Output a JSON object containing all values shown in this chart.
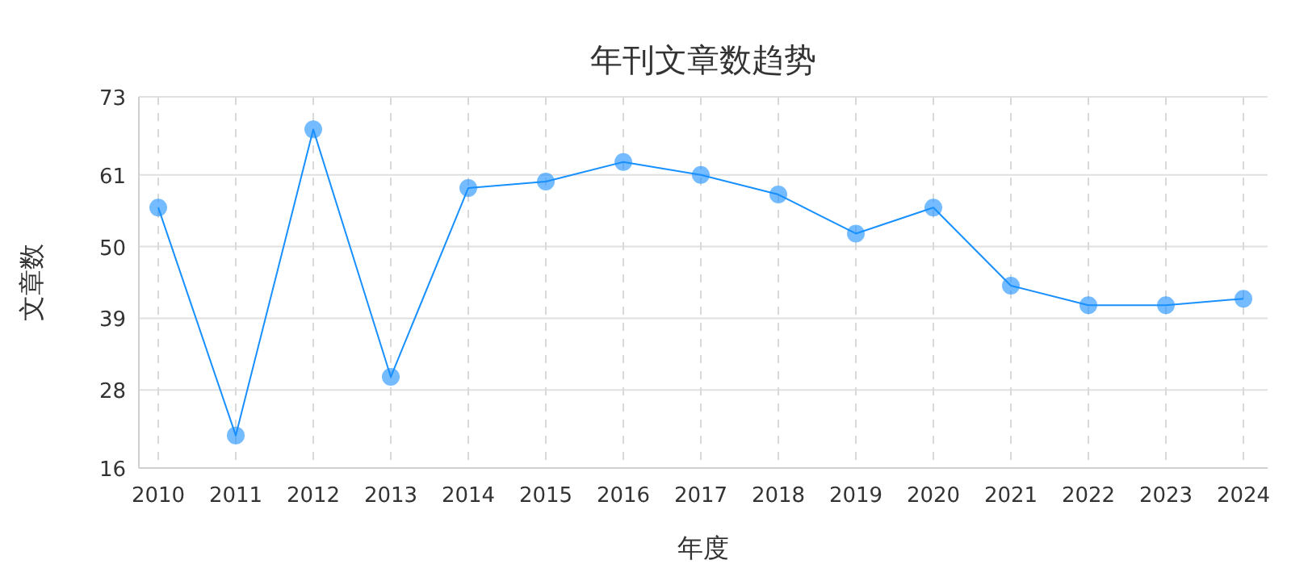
{
  "chart_data": {
    "type": "line",
    "title": "年刊文章数趋势",
    "xlabel": "年度",
    "ylabel": "文章数",
    "categories": [
      "2010",
      "2011",
      "2012",
      "2013",
      "2014",
      "2015",
      "2016",
      "2017",
      "2018",
      "2019",
      "2020",
      "2021",
      "2022",
      "2023",
      "2024"
    ],
    "series": [
      {
        "color": "#1890ff",
        "values": [
          56,
          21,
          68,
          30,
          59,
          60,
          63,
          61,
          58,
          52,
          56,
          44,
          41,
          41,
          42
        ]
      }
    ],
    "ylim": [
      16,
      73
    ],
    "yticks": [
      16,
      28,
      39,
      50,
      61,
      73
    ],
    "grid": true,
    "marker": "circle"
  }
}
